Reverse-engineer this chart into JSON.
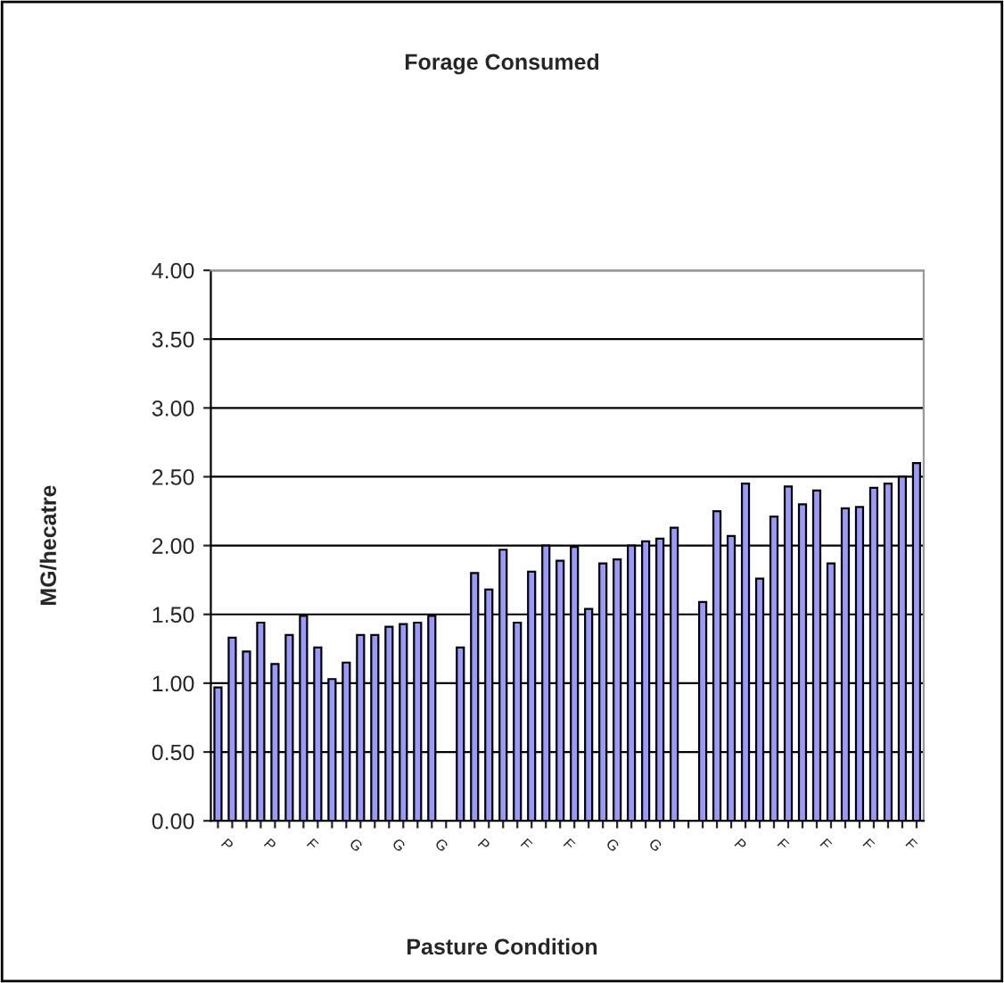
{
  "chart_data": {
    "type": "bar",
    "title": "Forage Consumed",
    "xlabel": "Pasture Condition",
    "ylabel": "MG/hecatre",
    "categories": [
      "P",
      null,
      null,
      "P",
      null,
      null,
      "F",
      null,
      null,
      "G",
      null,
      null,
      "G",
      null,
      null,
      "G",
      null,
      null,
      "P",
      null,
      null,
      "F",
      null,
      null,
      "F",
      null,
      null,
      "G",
      null,
      null,
      "G",
      null,
      null,
      null,
      null,
      null,
      "P",
      null,
      null,
      "F",
      null,
      null,
      "F",
      null,
      null,
      "F",
      null,
      null,
      "F",
      null
    ],
    "values": [
      0.97,
      1.33,
      1.23,
      1.44,
      1.14,
      1.35,
      1.49,
      1.26,
      1.03,
      1.15,
      1.35,
      1.35,
      1.41,
      1.43,
      1.44,
      1.49,
      null,
      1.26,
      1.8,
      1.68,
      1.97,
      1.44,
      1.81,
      2.0,
      1.89,
      1.99,
      1.54,
      1.87,
      1.9,
      2.0,
      2.03,
      2.05,
      2.13,
      null,
      1.59,
      2.25,
      2.07,
      2.45,
      1.76,
      2.21,
      2.43,
      2.3,
      2.4,
      1.87,
      2.27,
      2.28,
      2.42,
      2.45,
      2.5,
      2.6
    ],
    "color": "#9999ff",
    "ylim": [
      0,
      4
    ],
    "yticks": [
      {
        "value": 0,
        "label": "0.00"
      },
      {
        "value": 0.5,
        "label": "0.50"
      },
      {
        "value": 1,
        "label": "1.00"
      },
      {
        "value": 1.5,
        "label": "1.50"
      },
      {
        "value": 2,
        "label": "2.00"
      },
      {
        "value": 2.5,
        "label": "2.50"
      },
      {
        "value": 3,
        "label": "3.00"
      },
      {
        "value": 3.5,
        "label": "3.50"
      },
      {
        "value": 4,
        "label": "4.00"
      }
    ],
    "grid": "y",
    "legend": false
  }
}
